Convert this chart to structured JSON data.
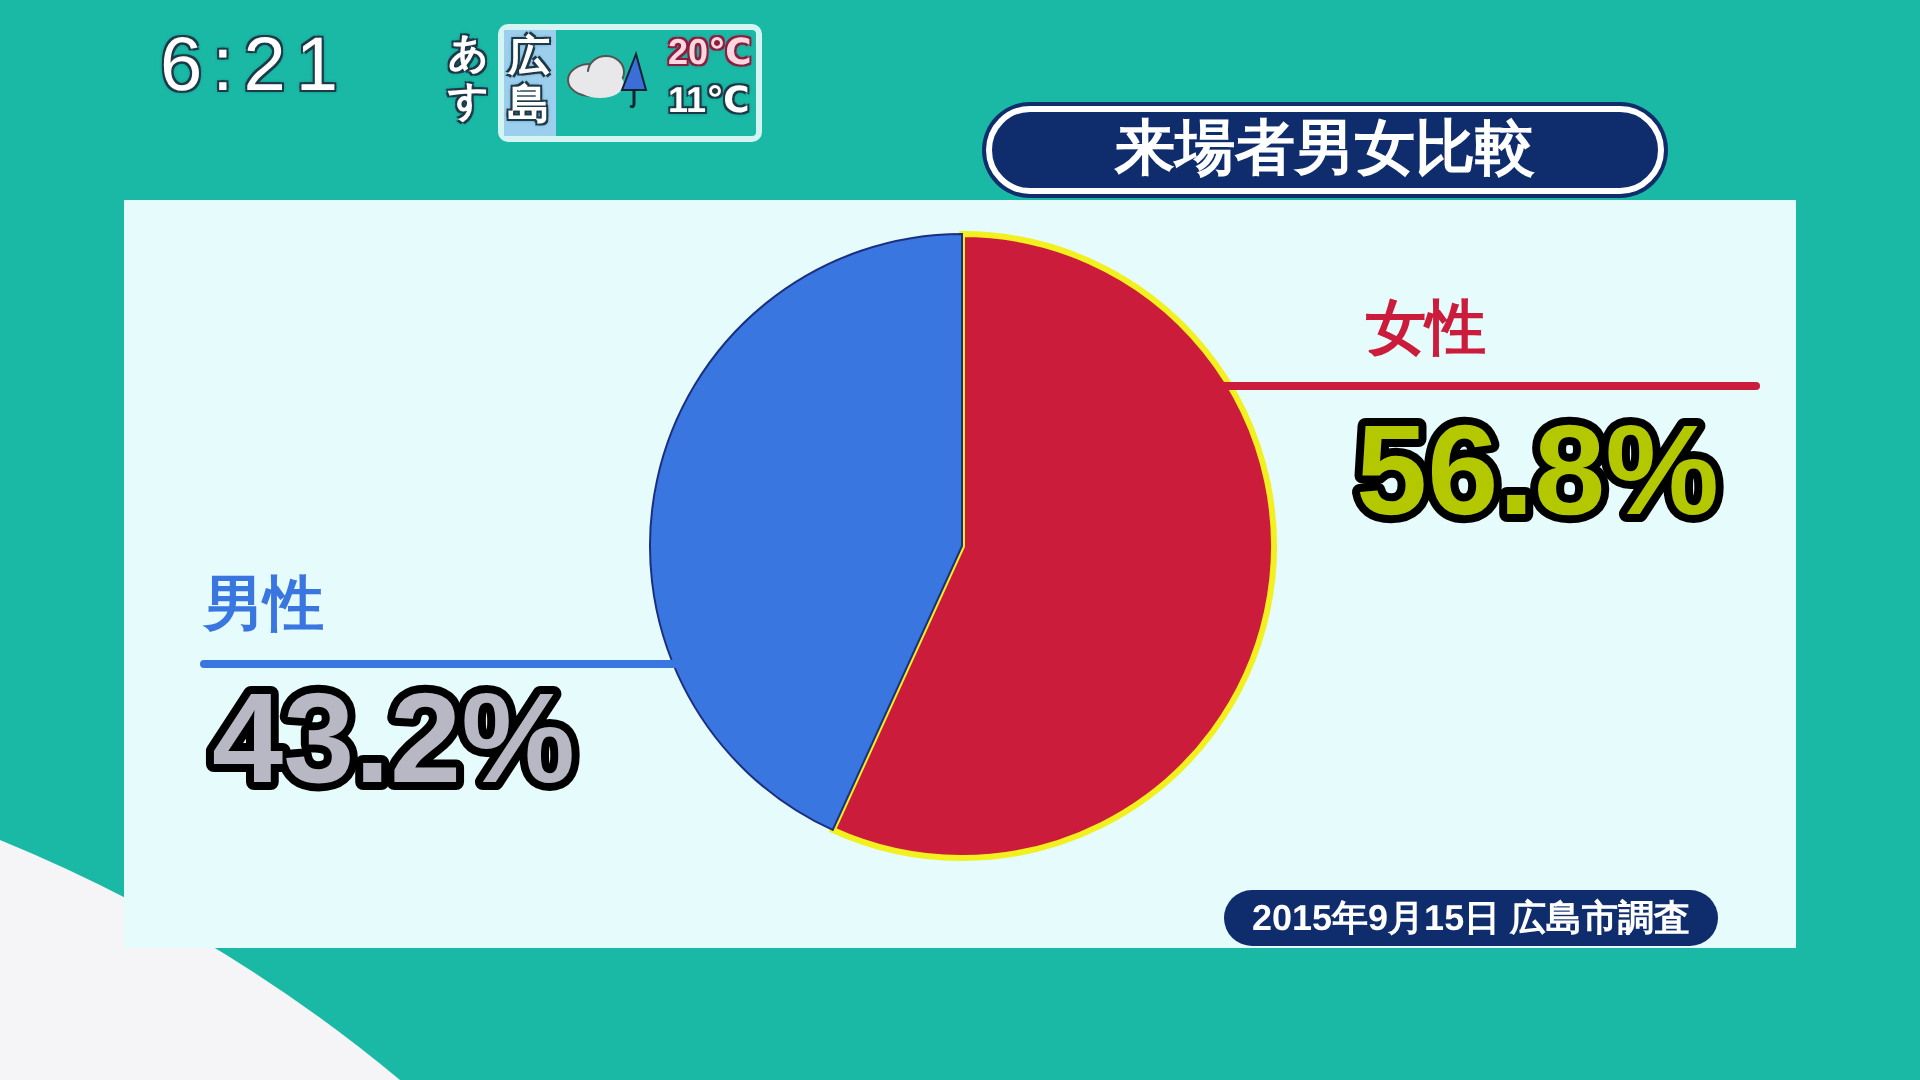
{
  "chart_data": {
    "type": "pie",
    "title": "来場者男女比較",
    "categories": [
      "女性",
      "男性"
    ],
    "values": [
      56.8,
      43.2
    ],
    "colors": [
      "#cc1c3c",
      "#3a76e0"
    ],
    "value_labels": [
      "56.8%",
      "43.2%"
    ],
    "annotations": [
      "6:21",
      "あす",
      "広島",
      "20℃",
      "11℃",
      "2015年9月15日 広島市調査"
    ]
  }
}
